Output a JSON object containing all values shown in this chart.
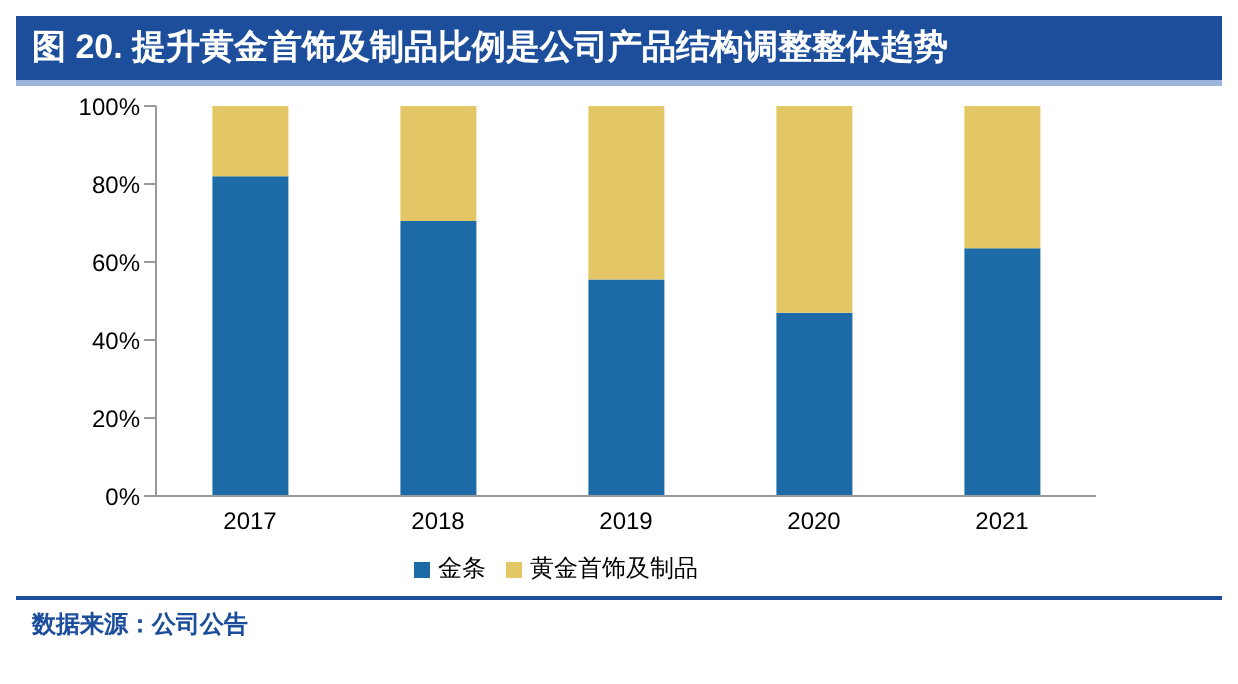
{
  "chart_data": {
    "type": "bar",
    "title": "图 20. 提升黄金首饰及制品比例是公司产品结构调整整体趋势",
    "categories": [
      "2017",
      "2018",
      "2019",
      "2020",
      "2021"
    ],
    "stacked": true,
    "series": [
      {
        "name": "金条",
        "color": "#1c6ba6",
        "values": [
          82,
          70.5,
          55.5,
          47,
          63.5
        ]
      },
      {
        "name": "黄金首饰及制品",
        "color": "#e3c766",
        "values": [
          18,
          29.5,
          44.5,
          53,
          36.5
        ]
      }
    ],
    "ylim": [
      0,
      100
    ],
    "yticks": [
      {
        "value": 0,
        "label": "0%"
      },
      {
        "value": 20,
        "label": "20%"
      },
      {
        "value": 40,
        "label": "40%"
      },
      {
        "value": 60,
        "label": "60%"
      },
      {
        "value": 80,
        "label": "80%"
      },
      {
        "value": 100,
        "label": "100%"
      }
    ],
    "grid": false,
    "legend": "bottom",
    "annotations": [
      "数据来源：公司公告"
    ]
  }
}
